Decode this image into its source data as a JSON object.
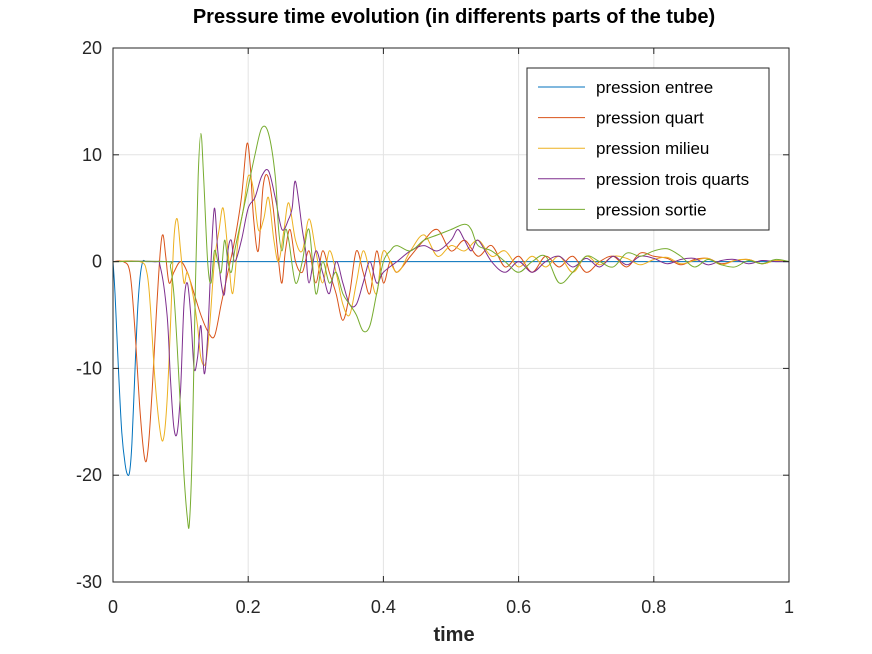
{
  "chart_data": {
    "type": "line",
    "title": "Pressure time evolution (in differents parts of the tube)",
    "xlabel": "time",
    "ylabel": "",
    "xlim": [
      0,
      1
    ],
    "ylim": [
      -30,
      20
    ],
    "xticks": [
      0,
      0.2,
      0.4,
      0.6,
      0.8,
      1
    ],
    "xtick_labels": [
      "0",
      "0.2",
      "0.4",
      "0.6",
      "0.8",
      "1"
    ],
    "yticks": [
      -30,
      -20,
      -10,
      0,
      10,
      20
    ],
    "ytick_labels": [
      "-30",
      "-20",
      "-10",
      "0",
      "10",
      "20"
    ],
    "grid": true,
    "legend_position": "top-right",
    "series": [
      {
        "name": "pression entree",
        "color": "#0072BD",
        "x": [
          0,
          0.003,
          0.008,
          0.013,
          0.018,
          0.022,
          0.025,
          0.028,
          0.032,
          0.036,
          0.04,
          0.044,
          0.048,
          0.052,
          0.06,
          0.08,
          0.2,
          0.4,
          0.6,
          0.8,
          1.0
        ],
        "y": [
          0,
          -3,
          -10,
          -16,
          -19,
          -20,
          -19.5,
          -17,
          -11,
          -5,
          -1.5,
          0,
          0,
          0,
          0,
          0,
          0,
          0,
          0,
          0,
          0
        ]
      },
      {
        "name": "pression quart",
        "color": "#D95319",
        "x": [
          0,
          0.015,
          0.025,
          0.032,
          0.04,
          0.047,
          0.052,
          0.058,
          0.064,
          0.07,
          0.074,
          0.078,
          0.083,
          0.09,
          0.1,
          0.11,
          0.12,
          0.13,
          0.14,
          0.15,
          0.16,
          0.17,
          0.18,
          0.19,
          0.198,
          0.203,
          0.208,
          0.215,
          0.222,
          0.229,
          0.237,
          0.245,
          0.25,
          0.255,
          0.262,
          0.27,
          0.28,
          0.29,
          0.3,
          0.31,
          0.32,
          0.33,
          0.34,
          0.35,
          0.36,
          0.37,
          0.38,
          0.39,
          0.4,
          0.41,
          0.42,
          0.44,
          0.46,
          0.48,
          0.5,
          0.52,
          0.54,
          0.56,
          0.58,
          0.6,
          0.62,
          0.64,
          0.66,
          0.68,
          0.7,
          0.72,
          0.74,
          0.76,
          0.78,
          0.8,
          0.82,
          0.84,
          0.86,
          0.88,
          0.9,
          0.92,
          0.94,
          0.96,
          0.98,
          1.0
        ],
        "y": [
          0,
          0,
          -1,
          -6,
          -14,
          -18.5,
          -17.5,
          -12,
          -5,
          1,
          2.5,
          0.5,
          -2,
          -1,
          0,
          -1,
          -3,
          -5,
          -6.5,
          -7,
          -4,
          -1,
          2,
          6,
          11,
          9,
          4,
          1,
          7,
          8,
          5,
          0,
          -2,
          1,
          3,
          0,
          -1,
          1,
          -2,
          1,
          -1,
          -3,
          -5.5,
          -3,
          1,
          -1,
          -3,
          1,
          -2,
          0,
          -1,
          0.5,
          2,
          3,
          1,
          2,
          0.5,
          1.5,
          -0.5,
          0.5,
          -1,
          0.5,
          -0.5,
          0.5,
          -1,
          0,
          0.5,
          -0.5,
          0.8,
          0.5,
          0.3,
          -0.3,
          0.2,
          0.3,
          -0.2,
          0.1,
          0.2,
          -0.2,
          0.1,
          0
        ]
      },
      {
        "name": "pression milieu",
        "color": "#EDB120",
        "x": [
          0,
          0.04,
          0.05,
          0.055,
          0.062,
          0.07,
          0.075,
          0.08,
          0.085,
          0.09,
          0.095,
          0.1,
          0.105,
          0.11,
          0.118,
          0.125,
          0.13,
          0.137,
          0.143,
          0.15,
          0.157,
          0.163,
          0.17,
          0.177,
          0.185,
          0.193,
          0.2,
          0.207,
          0.215,
          0.223,
          0.23,
          0.238,
          0.245,
          0.253,
          0.26,
          0.27,
          0.28,
          0.29,
          0.3,
          0.31,
          0.32,
          0.33,
          0.34,
          0.35,
          0.36,
          0.37,
          0.38,
          0.39,
          0.4,
          0.42,
          0.44,
          0.46,
          0.48,
          0.5,
          0.52,
          0.54,
          0.56,
          0.58,
          0.6,
          0.62,
          0.64,
          0.66,
          0.68,
          0.7,
          0.72,
          0.74,
          0.76,
          0.78,
          0.8,
          0.82,
          0.84,
          0.86,
          0.88,
          0.9,
          0.92,
          0.94,
          0.96,
          0.98,
          1.0
        ],
        "y": [
          0,
          0,
          -1,
          -4,
          -11,
          -16,
          -16.5,
          -13,
          -6,
          2,
          4,
          1,
          -2,
          -1,
          -3,
          -6,
          -9,
          -9.5,
          -6,
          0,
          3,
          5,
          1,
          -3,
          2,
          5,
          8,
          7,
          3,
          4,
          6,
          2,
          0,
          3,
          5.5,
          2,
          1,
          4,
          1,
          -2,
          1,
          -1,
          -4,
          -5,
          -2,
          1,
          -1,
          -3,
          1,
          -1,
          1,
          2.5,
          0.5,
          1.5,
          1,
          2,
          0.5,
          1,
          -0.5,
          0.5,
          -0.5,
          0.5,
          -1,
          0.5,
          -0.3,
          0.5,
          0.3,
          -0.3,
          0.2,
          0.4,
          -0.2,
          0.1,
          0.3,
          -0.3,
          0.1,
          0.2,
          -0.2,
          0.1,
          0
        ]
      },
      {
        "name": "pression trois quarts",
        "color": "#7E2F8E",
        "x": [
          0,
          0.06,
          0.07,
          0.08,
          0.085,
          0.09,
          0.095,
          0.1,
          0.105,
          0.11,
          0.115,
          0.12,
          0.125,
          0.13,
          0.135,
          0.14,
          0.145,
          0.15,
          0.155,
          0.16,
          0.165,
          0.17,
          0.175,
          0.18,
          0.19,
          0.2,
          0.21,
          0.22,
          0.23,
          0.24,
          0.25,
          0.26,
          0.265,
          0.27,
          0.28,
          0.285,
          0.29,
          0.3,
          0.31,
          0.32,
          0.33,
          0.34,
          0.35,
          0.36,
          0.37,
          0.38,
          0.39,
          0.4,
          0.42,
          0.44,
          0.46,
          0.48,
          0.5,
          0.51,
          0.52,
          0.53,
          0.54,
          0.56,
          0.58,
          0.6,
          0.62,
          0.64,
          0.66,
          0.68,
          0.7,
          0.72,
          0.74,
          0.76,
          0.78,
          0.8,
          0.82,
          0.84,
          0.86,
          0.88,
          0.9,
          0.92,
          0.94,
          0.96,
          0.98,
          1.0
        ],
        "y": [
          0,
          0,
          -0.5,
          -5,
          -11,
          -15.5,
          -16,
          -12,
          -4,
          -2,
          -5,
          -10,
          -9,
          -6,
          -10.5,
          -7,
          0,
          5,
          1,
          -2,
          -3,
          1,
          2,
          0,
          2,
          5,
          6,
          8,
          8.5,
          6,
          3,
          4,
          5,
          7.5,
          3,
          1,
          -2,
          1,
          -1,
          -3,
          0,
          -2,
          -4,
          -4,
          -2,
          0,
          -2,
          -1,
          0,
          1,
          1.5,
          1,
          2,
          3,
          2,
          1,
          2,
          0,
          -1,
          0,
          -1,
          0,
          0.5,
          -0.5,
          0.3,
          -0.5,
          0.5,
          -0.3,
          0.5,
          0.3,
          -0.2,
          0.2,
          0.3,
          -0.3,
          0.1,
          0.2,
          -0.2,
          0.1,
          0,
          0
        ]
      },
      {
        "name": "pression sortie",
        "color": "#77AC30",
        "x": [
          0,
          0.08,
          0.085,
          0.09,
          0.095,
          0.1,
          0.105,
          0.11,
          0.113,
          0.117,
          0.122,
          0.126,
          0.13,
          0.134,
          0.14,
          0.145,
          0.15,
          0.155,
          0.16,
          0.165,
          0.17,
          0.175,
          0.18,
          0.19,
          0.2,
          0.21,
          0.22,
          0.23,
          0.24,
          0.245,
          0.25,
          0.255,
          0.26,
          0.27,
          0.28,
          0.29,
          0.3,
          0.31,
          0.32,
          0.33,
          0.34,
          0.35,
          0.36,
          0.37,
          0.38,
          0.39,
          0.4,
          0.41,
          0.42,
          0.44,
          0.46,
          0.48,
          0.5,
          0.52,
          0.53,
          0.54,
          0.56,
          0.58,
          0.6,
          0.62,
          0.64,
          0.66,
          0.68,
          0.7,
          0.72,
          0.74,
          0.76,
          0.78,
          0.8,
          0.82,
          0.84,
          0.86,
          0.88,
          0.9,
          0.92,
          0.94,
          0.96,
          0.98,
          1.0
        ],
        "y": [
          0,
          0,
          -0.5,
          -3,
          -8,
          -14,
          -20,
          -24,
          -24.5,
          -18,
          -2,
          8,
          12,
          8,
          0,
          -2,
          1,
          0,
          -1,
          2,
          0,
          -1,
          1,
          4,
          7,
          10,
          12.5,
          12,
          8,
          3,
          1,
          3,
          2,
          -2,
          0,
          3,
          -3,
          0,
          -2,
          -1,
          -3,
          -4,
          -5,
          -6.5,
          -6,
          -3,
          0,
          1,
          1.5,
          1,
          2,
          2.5,
          3,
          3.5,
          3,
          1.5,
          1,
          0,
          -1,
          0,
          0.5,
          -2,
          -1,
          0.5,
          0,
          -0.5,
          0.8,
          0.5,
          1,
          1.2,
          0.5,
          -0.5,
          0.2,
          -0.3,
          -0.5,
          0.1,
          -0.2,
          0.2,
          0
        ]
      }
    ]
  }
}
